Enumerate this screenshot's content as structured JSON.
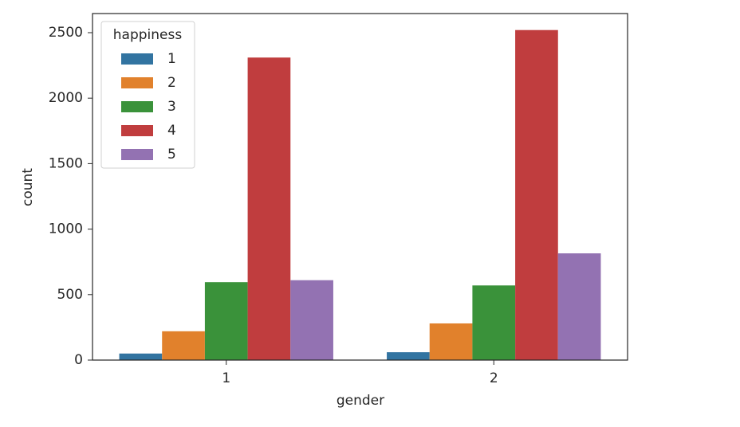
{
  "chart_data": {
    "type": "bar",
    "x_label": "gender",
    "y_label": "count",
    "categories": [
      "1",
      "2"
    ],
    "legend_title": "happiness",
    "legend": "upper left",
    "series": [
      {
        "name": "1",
        "color": "#3274a1",
        "values": [
          50,
          60
        ]
      },
      {
        "name": "2",
        "color": "#e1812c",
        "values": [
          220,
          280
        ]
      },
      {
        "name": "3",
        "color": "#3a923a",
        "values": [
          595,
          570
        ]
      },
      {
        "name": "4",
        "color": "#c03d3e",
        "values": [
          2310,
          2520
        ]
      },
      {
        "name": "5",
        "color": "#9372b2",
        "values": [
          610,
          815
        ]
      }
    ],
    "ylim": [
      0,
      2646
    ],
    "yticks": [
      0,
      500,
      1000,
      1500,
      2000,
      2500
    ]
  }
}
